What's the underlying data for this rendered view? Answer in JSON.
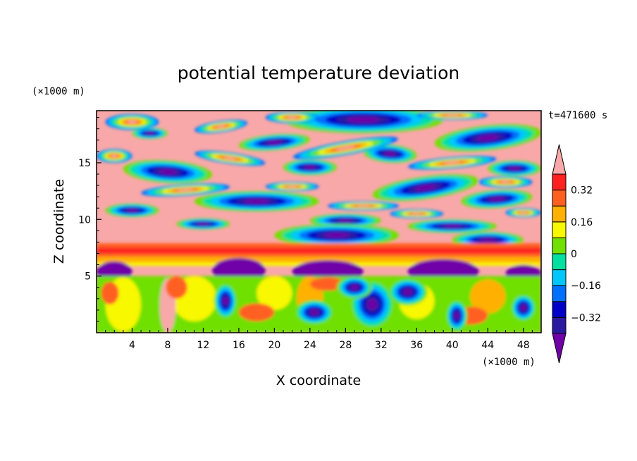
{
  "chart_data": {
    "type": "heatmap",
    "title": "potential temperature deviation",
    "xlabel": "X coordinate",
    "ylabel": "Z coordinate",
    "x_unit": "(×1000 m)",
    "y_unit": "(×1000 m)",
    "time_label": "t=471600 s",
    "xlim": [
      0,
      50
    ],
    "ylim": [
      0,
      19.6
    ],
    "xticks": [
      4,
      8,
      12,
      16,
      20,
      24,
      28,
      32,
      36,
      40,
      44,
      48
    ],
    "yticks": [
      5,
      10,
      15
    ],
    "colorbar": {
      "levels": [
        -0.4,
        -0.32,
        -0.24,
        -0.16,
        -0.08,
        0,
        0.08,
        0.16,
        0.24,
        0.32,
        0.4
      ],
      "labels": [
        {
          "value": 0.32,
          "text": "0.32"
        },
        {
          "value": 0.16,
          "text": "0.16"
        },
        {
          "value": 0,
          "text": "0"
        },
        {
          "value": -0.16,
          "text": "−0.16"
        },
        {
          "value": -0.32,
          "text": "−0.32"
        }
      ],
      "colors_low_to_high": [
        "#7000a8",
        "#2a1aa0",
        "#0000c8",
        "#0070ff",
        "#00c8ff",
        "#00e0a0",
        "#70e000",
        "#f8f800",
        "#ffb000",
        "#ff6020",
        "#ff2020",
        "#f8a8a8"
      ],
      "extends": "both"
    }
  }
}
